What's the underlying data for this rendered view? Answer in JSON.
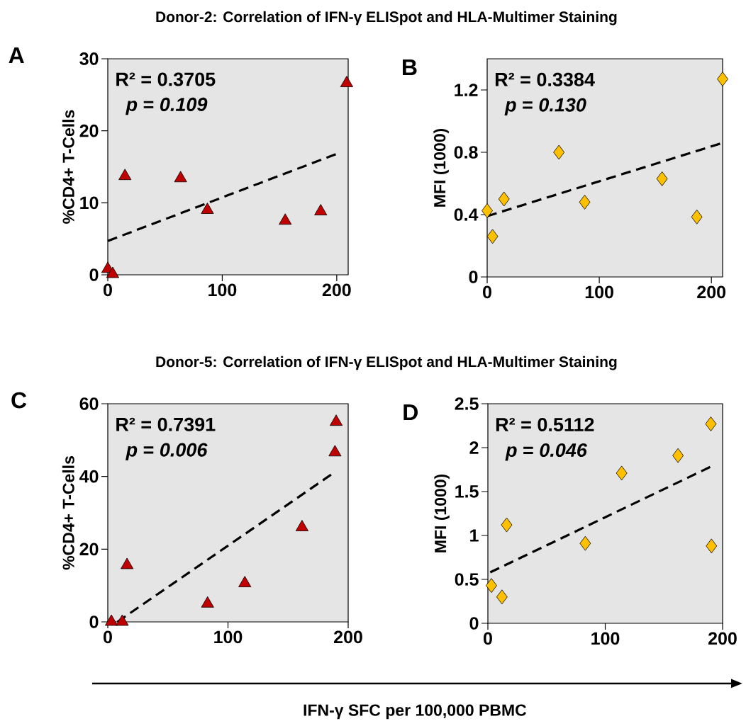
{
  "chart_data": [
    {
      "type": "scatter",
      "title": "Donor-2: Correlation of IFN-γ ELISpot and HLA-Multimer Staining",
      "ylabel": "%CD4+ T-Cells",
      "xlim": [
        0,
        210
      ],
      "xticks": [
        0,
        100,
        200
      ],
      "ylim": [
        0,
        30
      ],
      "yticks": [
        0,
        10,
        20,
        30
      ],
      "annotations": [
        "A",
        "R² = 0.3705",
        "*p* = *0.109*"
      ],
      "series": [
        {
          "marker": "triangle",
          "color": "#c00000",
          "x": [
            0,
            4.3,
            15,
            63.6,
            87,
            155,
            186,
            208.7
          ],
          "values": [
            0.8,
            0.1,
            13.7,
            13.4,
            9.0,
            7.5,
            8.8,
            26.6
          ]
        },
        {
          "type": "line",
          "line_style": "dashed",
          "color": "#000000",
          "x": [
            0,
            200
          ],
          "values": [
            4.7,
            16.8
          ]
        }
      ]
    },
    {
      "type": "scatter",
      "ylabel": "MFI (1000)",
      "xlim": [
        0,
        210
      ],
      "xticks": [
        0,
        100,
        200
      ],
      "ylim": [
        0,
        1.4
      ],
      "yticks": [
        0,
        0.4,
        0.8,
        1.2
      ],
      "annotations": [
        "B",
        "R² = 0.3384",
        "*p* = *0.130*"
      ],
      "series": [
        {
          "marker": "diamond",
          "color": "#ffc000",
          "x": [
            0,
            4.8,
            15,
            64,
            87,
            156,
            187,
            210
          ],
          "values": [
            0.425,
            0.26,
            0.5,
            0.8,
            0.48,
            0.63,
            0.385,
            1.27
          ]
        },
        {
          "type": "line",
          "line_style": "dashed",
          "color": "#000000",
          "x": [
            0,
            210
          ],
          "values": [
            0.39,
            0.86
          ]
        }
      ]
    },
    {
      "type": "scatter",
      "title": "Donor-5: Correlation of IFN-γ ELISpot and HLA-Multimer Staining",
      "ylabel": "%CD4+ T-Cells",
      "xlabel": "IFN-γ SFC per 100,000 PBMC",
      "xlim": [
        0,
        200
      ],
      "xticks": [
        0,
        100,
        200
      ],
      "ylim": [
        0,
        60
      ],
      "yticks": [
        0,
        20,
        40,
        60
      ],
      "annotations": [
        "C",
        "R² = 0.7391",
        "*p* = *0.006*"
      ],
      "series": [
        {
          "marker": "triangle",
          "color": "#c00000",
          "x": [
            3,
            12,
            16,
            83,
            114,
            161.6,
            189,
            190
          ],
          "values": [
            0,
            0,
            15.6,
            5.0,
            10.6,
            26,
            46.6,
            55
          ]
        },
        {
          "type": "line",
          "line_style": "dashed",
          "color": "#000000",
          "x": [
            8,
            188
          ],
          "values": [
            0,
            41
          ]
        }
      ]
    },
    {
      "type": "scatter",
      "ylabel": "MFI (1000)",
      "xlim": [
        0,
        200
      ],
      "xticks": [
        0,
        100,
        200
      ],
      "ylim": [
        0,
        2.5
      ],
      "yticks": [
        0,
        0.5,
        1,
        1.5,
        2,
        2.5
      ],
      "annotations": [
        "D",
        "R² = 0.5112",
        "*p* = *0.046*"
      ],
      "series": [
        {
          "marker": "diamond",
          "color": "#ffc000",
          "x": [
            3,
            12,
            16,
            83,
            114,
            162,
            190,
            190.5
          ],
          "values": [
            0.43,
            0.3,
            1.12,
            0.91,
            1.71,
            1.91,
            2.27,
            0.88
          ]
        },
        {
          "type": "line",
          "line_style": "dashed",
          "color": "#000000",
          "x": [
            2,
            191
          ],
          "values": [
            0.58,
            1.79
          ]
        }
      ]
    }
  ]
}
